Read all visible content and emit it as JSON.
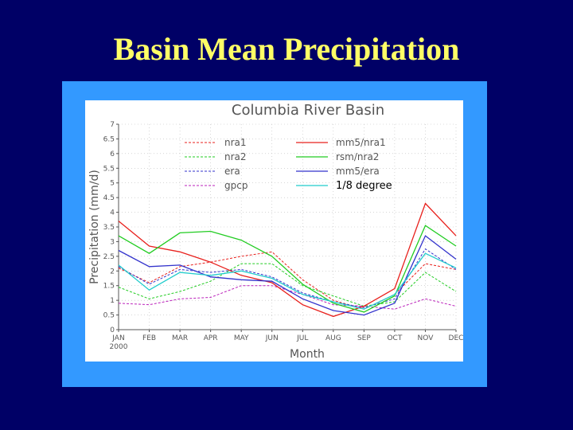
{
  "slide": {
    "title": "Basin Mean Precipitation"
  },
  "colors": {
    "background": "#000066",
    "title": "#ffff66",
    "frame": "#3399ff",
    "chart_bg": "#ffffff"
  },
  "chart_data": {
    "type": "line",
    "title": "Columbia River Basin",
    "xlabel": "Month",
    "ylabel": "Precipitation (mm/d)",
    "categories": [
      "JAN",
      "FEB",
      "MAR",
      "APR",
      "MAY",
      "JUN",
      "JUL",
      "AUG",
      "SEP",
      "OCT",
      "NOV",
      "DEC"
    ],
    "first_category_sublabel": "2000",
    "ylim": [
      0,
      7
    ],
    "yticks": [
      "0",
      "0.5",
      "1",
      "1.5",
      "2",
      "2.5",
      "3",
      "3.5",
      "4",
      "4.5",
      "5",
      "5.5",
      "6",
      "6.5",
      "7"
    ],
    "grid": true,
    "series": [
      {
        "name": "nra1",
        "color": "#e8201c",
        "dash": true,
        "values": [
          2.1,
          1.6,
          2.15,
          2.3,
          2.5,
          2.65,
          1.7,
          1.0,
          0.7,
          1.2,
          2.25,
          2.05
        ]
      },
      {
        "name": "nra2",
        "color": "#22cc22",
        "dash": true,
        "values": [
          1.45,
          1.05,
          1.3,
          1.65,
          2.25,
          2.25,
          1.5,
          1.15,
          0.8,
          0.95,
          1.95,
          1.3
        ]
      },
      {
        "name": "era",
        "color": "#3333cc",
        "dash": true,
        "values": [
          2.15,
          1.55,
          2.05,
          1.95,
          2.05,
          1.8,
          1.25,
          0.95,
          0.75,
          1.05,
          2.75,
          2.05
        ]
      },
      {
        "name": "gpcp",
        "color": "#bb22bb",
        "dash": true,
        "values": [
          0.9,
          0.85,
          1.05,
          1.1,
          1.5,
          1.5,
          1.2,
          0.85,
          0.8,
          0.7,
          1.05,
          0.8
        ]
      },
      {
        "name": "mm5/nra1",
        "color": "#e8201c",
        "dash": false,
        "values": [
          3.7,
          2.85,
          2.65,
          2.3,
          1.85,
          1.6,
          0.85,
          0.45,
          0.8,
          1.4,
          4.3,
          3.2
        ]
      },
      {
        "name": "rsm/nra2",
        "color": "#22cc22",
        "dash": false,
        "values": [
          3.2,
          2.6,
          3.3,
          3.35,
          3.05,
          2.5,
          1.55,
          0.9,
          0.6,
          1.15,
          3.55,
          2.85
        ]
      },
      {
        "name": "mm5/era",
        "color": "#3333cc",
        "dash": false,
        "values": [
          2.7,
          2.15,
          2.2,
          1.8,
          1.7,
          1.65,
          1.05,
          0.65,
          0.5,
          0.9,
          3.2,
          2.4
        ]
      },
      {
        "name": "1/8 degree",
        "color": "#22cccc",
        "dash": false,
        "values": [
          2.2,
          1.35,
          1.95,
          1.85,
          2.0,
          1.75,
          1.2,
          0.95,
          0.7,
          1.2,
          2.6,
          2.1
        ]
      }
    ]
  }
}
